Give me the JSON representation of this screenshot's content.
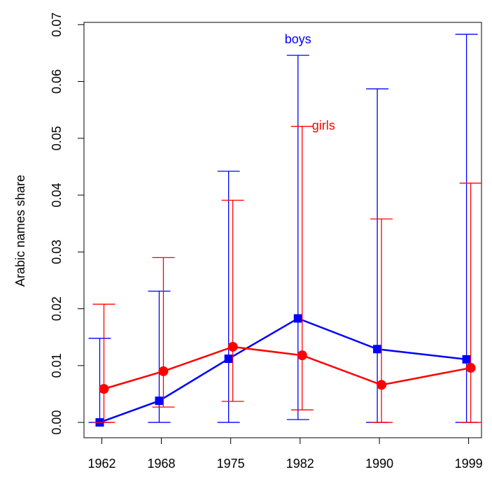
{
  "chart_data": {
    "type": "errorbar-line",
    "y_label": "Arabic names share",
    "x": [
      1962,
      1968,
      1975,
      1982,
      1990,
      1999
    ],
    "xlim": [
      1960.2,
      2000.3
    ],
    "xticks": [
      1962,
      1968,
      1975,
      1982,
      1990,
      1999
    ],
    "ylim": [
      -0.0027,
      0.0704
    ],
    "yticks": [
      {
        "value": 0,
        "label": "0.00"
      },
      0.01,
      0.02,
      0.03,
      0.04,
      0.05,
      0.06,
      0.07
    ],
    "series": [
      {
        "name": "boys",
        "color": "#0000ff",
        "marker": "square",
        "values": [
          0.0,
          0.0038,
          0.0112,
          0.0183,
          0.0129,
          0.0111
        ],
        "lower": [
          0.0,
          0.0,
          0.0,
          0.0005,
          0.0,
          0.0
        ],
        "upper": [
          0.0148,
          0.0231,
          0.0442,
          0.0646,
          0.0587,
          0.0683
        ]
      },
      {
        "name": "girls",
        "color": "#ff0000",
        "marker": "circle",
        "values": [
          0.0059,
          0.009,
          0.0133,
          0.0118,
          0.0066,
          0.0096
        ],
        "lower": [
          0.0,
          0.0027,
          0.0037,
          0.0022,
          0.0,
          0.0
        ],
        "upper": [
          0.0208,
          0.029,
          0.0391,
          0.0521,
          0.0358,
          0.0421
        ]
      }
    ]
  }
}
